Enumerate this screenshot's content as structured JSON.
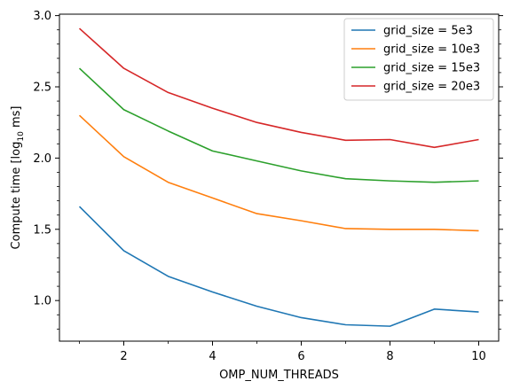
{
  "chart_data": {
    "type": "line",
    "xlabel": "OMP_NUM_THREADS",
    "ylabel": {
      "prefix": "Compute time [log",
      "subscript": "10",
      "suffix": " ms]"
    },
    "xlim": [
      0.55,
      10.45
    ],
    "ylim": [
      0.715,
      3.01
    ],
    "x_major_ticks": [
      2,
      4,
      6,
      8,
      10
    ],
    "x_minor_ticks": [
      1,
      3,
      5,
      7,
      9
    ],
    "y_major_ticks": [
      1.0,
      1.5,
      2.0,
      2.5,
      3.0
    ],
    "y_major_tick_labels": [
      "1.0",
      "1.5",
      "2.0",
      "2.5",
      "3.0"
    ],
    "y_minor_step": 0.1,
    "grid": false,
    "legend_position": "top-right",
    "x": [
      1,
      2,
      3,
      4,
      5,
      6,
      7,
      8,
      9,
      10
    ],
    "series": [
      {
        "name": "grid_size = 5e3",
        "color": "#1f77b4",
        "values": [
          1.66,
          1.35,
          1.17,
          1.06,
          0.96,
          0.88,
          0.83,
          0.82,
          0.94,
          0.92
        ]
      },
      {
        "name": "grid_size = 10e3",
        "color": "#ff7f0e",
        "values": [
          2.3,
          2.01,
          1.83,
          1.72,
          1.61,
          1.56,
          1.505,
          1.5,
          1.5,
          1.49
        ]
      },
      {
        "name": "grid_size = 15e3",
        "color": "#2ca02c",
        "values": [
          2.63,
          2.34,
          2.19,
          2.05,
          1.98,
          1.91,
          1.855,
          1.84,
          1.83,
          1.84
        ]
      },
      {
        "name": "grid_size = 20e3",
        "color": "#d62728",
        "values": [
          2.91,
          2.63,
          2.46,
          2.35,
          2.25,
          2.18,
          2.125,
          2.13,
          2.075,
          2.13
        ]
      }
    ]
  }
}
